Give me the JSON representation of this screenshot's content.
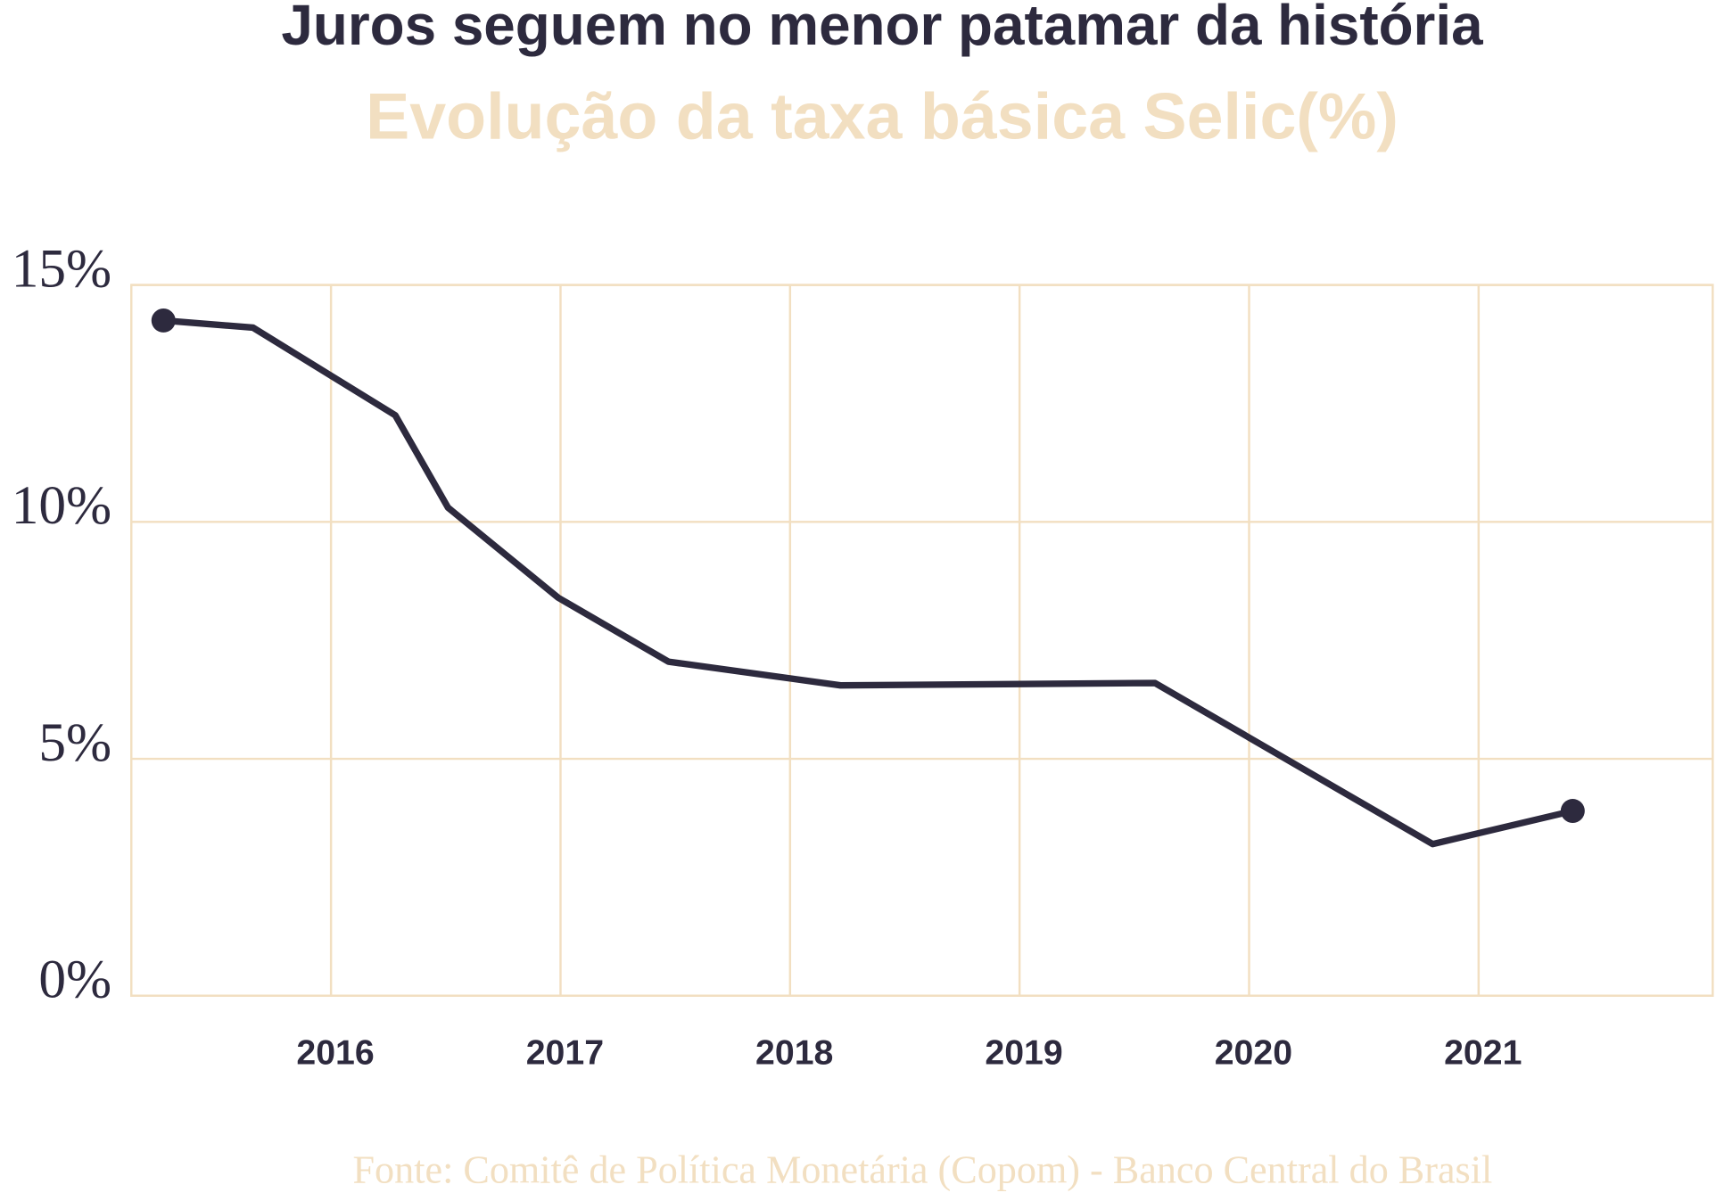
{
  "chart_data": {
    "type": "line",
    "title": "Juros seguem no menor patamar da história",
    "subtitle": "Evolução da taxa básica Selic(%)",
    "source": "Fonte: Comitê de Política Monetária (Copom) - Banco Central do Brasil",
    "x": [
      2015.27,
      2015.66,
      2016.28,
      2016.51,
      2016.99,
      2017.47,
      2018.22,
      2019.59,
      2020.8,
      2021.41
    ],
    "series": [
      {
        "name": "Selic",
        "color": "#2d2a3e",
        "values": [
          14.25,
          14.1,
          12.25,
          10.3,
          8.4,
          7.05,
          6.55,
          6.6,
          3.2,
          3.9
        ]
      }
    ],
    "xlim": [
      2015.13,
      2022.02
    ],
    "xticks": [
      2016,
      2017,
      2018,
      2019,
      2020,
      2021
    ],
    "ylim": [
      0,
      15
    ],
    "yticks": [
      {
        "value": 0,
        "label": "0%"
      },
      {
        "value": 5,
        "label": "5%"
      },
      {
        "value": 10,
        "label": "10%"
      },
      {
        "value": 15,
        "label": "15%"
      }
    ],
    "grid": true,
    "grid_color": "#f2dfc1",
    "accent_color": "#f2dfc1"
  }
}
